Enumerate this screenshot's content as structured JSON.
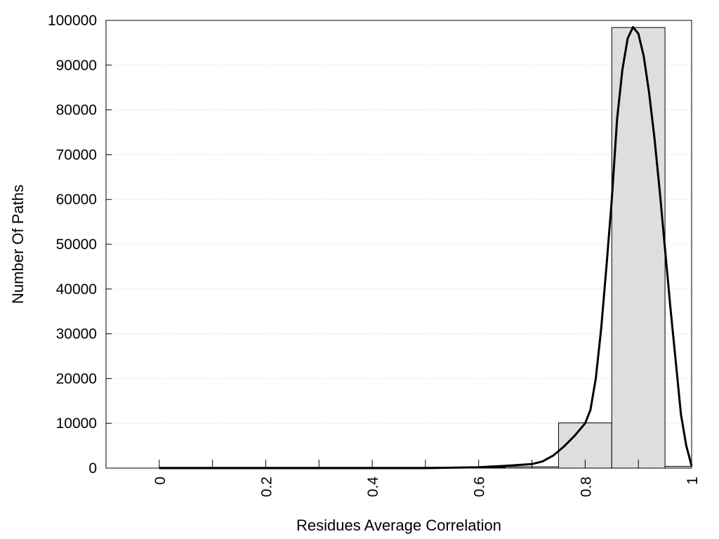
{
  "chart_data": {
    "type": "bar",
    "title": "",
    "xlabel": "Residues Average Correlation",
    "ylabel": "Number Of Paths",
    "xlim": [
      -0.1,
      1.0
    ],
    "ylim": [
      0,
      100000
    ],
    "x_ticks": [
      0,
      0.2,
      0.4,
      0.6,
      0.8,
      1
    ],
    "x_tick_labels": [
      "0",
      "0.2",
      "0.4",
      "0.6",
      "0.8",
      "1"
    ],
    "x_minor_ticks": [
      0.1,
      0.3,
      0.5,
      0.7,
      0.9
    ],
    "y_ticks": [
      0,
      10000,
      20000,
      30000,
      40000,
      50000,
      60000,
      70000,
      80000,
      90000,
      100000
    ],
    "y_tick_labels": [
      "0",
      "10000",
      "20000",
      "30000",
      "40000",
      "50000",
      "60000",
      "70000",
      "80000",
      "90000",
      "100000"
    ],
    "grid": "horizontal-dotted",
    "bar_color": "#dedede",
    "bars": [
      {
        "x0": 0.65,
        "x1": 0.75,
        "value": 300
      },
      {
        "x0": 0.75,
        "x1": 0.85,
        "value": 10100
      },
      {
        "x0": 0.85,
        "x1": 0.95,
        "value": 98400
      },
      {
        "x0": 0.95,
        "x1": 1.0,
        "value": 400
      }
    ],
    "curve": {
      "x": [
        0.0,
        0.1,
        0.2,
        0.3,
        0.4,
        0.5,
        0.55,
        0.6,
        0.65,
        0.7,
        0.72,
        0.74,
        0.76,
        0.78,
        0.8,
        0.81,
        0.82,
        0.83,
        0.84,
        0.85,
        0.86,
        0.87,
        0.88,
        0.89,
        0.9,
        0.91,
        0.92,
        0.93,
        0.94,
        0.95,
        0.96,
        0.97,
        0.98,
        0.99,
        1.0
      ],
      "y": [
        0,
        0,
        0,
        0,
        0,
        0,
        100,
        200,
        500,
        900,
        1500,
        2800,
        4800,
        7200,
        10000,
        13000,
        20000,
        31000,
        45000,
        60000,
        78000,
        89000,
        96000,
        98500,
        97000,
        92000,
        84000,
        74000,
        62000,
        49000,
        36000,
        24000,
        12000,
        5000,
        500
      ]
    }
  }
}
